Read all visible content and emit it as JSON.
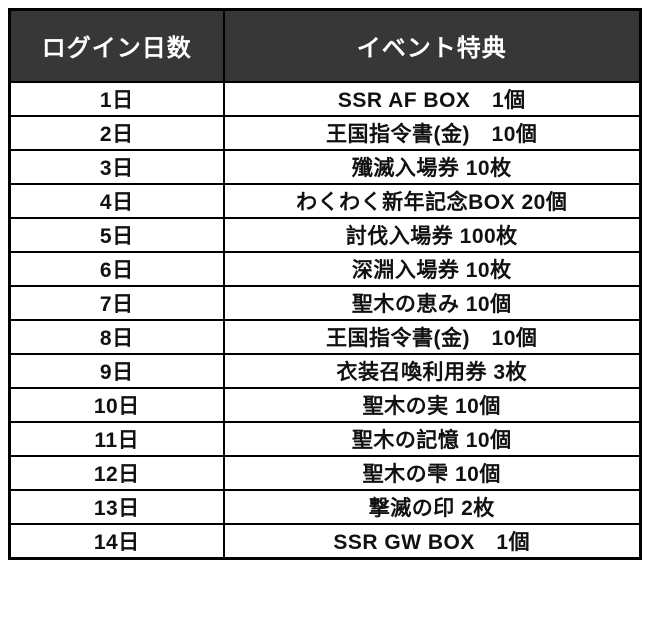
{
  "colors": {
    "header_bg": "#373737",
    "header_text": "#ffffff",
    "border": "#000000",
    "row_bg": "#ffffff",
    "row_text": "#111111",
    "page_bg": "#ffffff"
  },
  "table": {
    "headers": [
      "ログイン日数",
      "イベント特典"
    ],
    "rows": [
      {
        "day": "1日",
        "reward": "SSR AF BOX　1個"
      },
      {
        "day": "2日",
        "reward": "王国指令書(金)　10個"
      },
      {
        "day": "3日",
        "reward": "殲滅入場券 10枚"
      },
      {
        "day": "4日",
        "reward": "わくわく新年記念BOX 20個"
      },
      {
        "day": "5日",
        "reward": "討伐入場券 100枚"
      },
      {
        "day": "6日",
        "reward": "深淵入場券 10枚"
      },
      {
        "day": "7日",
        "reward": "聖木の恵み 10個"
      },
      {
        "day": "8日",
        "reward": "王国指令書(金)　10個"
      },
      {
        "day": "9日",
        "reward": "衣装召喚利用券 3枚"
      },
      {
        "day": "10日",
        "reward": "聖木の実 10個"
      },
      {
        "day": "11日",
        "reward": "聖木の記憶 10個"
      },
      {
        "day": "12日",
        "reward": "聖木の雫 10個"
      },
      {
        "day": "13日",
        "reward": "撃滅の印 2枚"
      },
      {
        "day": "14日",
        "reward": "SSR GW BOX　1個"
      }
    ]
  },
  "chart_data": {
    "type": "table",
    "title": "",
    "columns": [
      "ログイン日数",
      "イベント特典"
    ],
    "rows": [
      [
        "1日",
        "SSR AF BOX　1個"
      ],
      [
        "2日",
        "王国指令書(金)　10個"
      ],
      [
        "3日",
        "殲滅入場券 10枚"
      ],
      [
        "4日",
        "わくわく新年記念BOX 20個"
      ],
      [
        "5日",
        "討伐入場券 100枚"
      ],
      [
        "6日",
        "深淵入場券 10枚"
      ],
      [
        "7日",
        "聖木の恵み 10個"
      ],
      [
        "8日",
        "王国指令書(金)　10個"
      ],
      [
        "9日",
        "衣装召喚利用券 3枚"
      ],
      [
        "10日",
        "聖木の実 10個"
      ],
      [
        "11日",
        "聖木の記憶 10個"
      ],
      [
        "12日",
        "聖木の雫 10個"
      ],
      [
        "13日",
        "撃滅の印 2枚"
      ],
      [
        "14日",
        "SSR GW BOX　1個"
      ]
    ]
  }
}
